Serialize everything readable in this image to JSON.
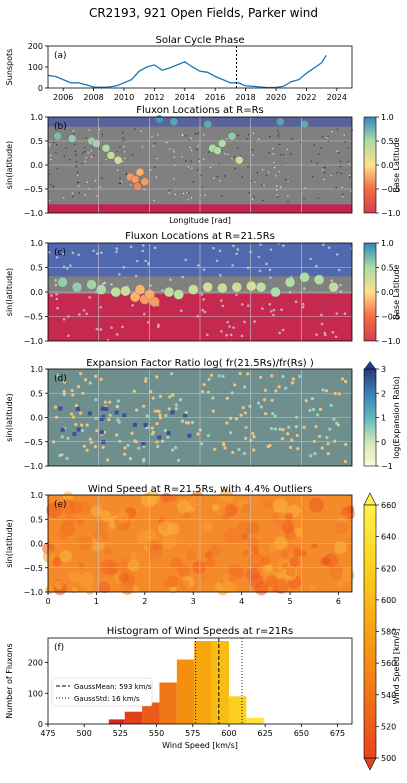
{
  "title": "CR2193, 921 Open Fields, Parker wind",
  "colors": {
    "series": "#1f77b4",
    "grid": "#b0b0b0",
    "panel_bg": "#7f7f7f"
  },
  "chart_data": [
    {
      "id": "a",
      "type": "line",
      "label": "(a)",
      "title": "Solar Cycle Phase",
      "ylabel": "Sunspots",
      "xlim": [
        2005,
        2025
      ],
      "ylim": [
        0,
        200
      ],
      "xticks": [
        "2006",
        "2008",
        "2010",
        "2012",
        "2014",
        "2016",
        "2018",
        "2020",
        "2022",
        "2024"
      ],
      "yticks": [
        "0",
        "100",
        "200"
      ],
      "vline_x": 2017.4,
      "x": [
        2005.0,
        2005.5,
        2006.0,
        2006.5,
        2007.0,
        2007.5,
        2008.0,
        2008.5,
        2009.0,
        2009.5,
        2010.0,
        2010.5,
        2011.0,
        2011.5,
        2012.0,
        2012.5,
        2013.0,
        2013.5,
        2014.0,
        2014.5,
        2015.0,
        2015.5,
        2016.0,
        2016.5,
        2017.0,
        2017.5,
        2018.0,
        2018.5,
        2019.0,
        2019.5,
        2020.0,
        2020.5,
        2021.0,
        2021.5,
        2022.0,
        2022.5,
        2023.0,
        2023.3
      ],
      "y": [
        60,
        55,
        40,
        25,
        25,
        15,
        5,
        3,
        5,
        10,
        25,
        40,
        80,
        100,
        110,
        85,
        95,
        110,
        125,
        100,
        80,
        75,
        55,
        40,
        25,
        25,
        10,
        8,
        5,
        2,
        3,
        8,
        30,
        40,
        70,
        95,
        120,
        155
      ]
    },
    {
      "id": "b",
      "type": "scatter",
      "label": "(b)",
      "title": "Fluxon Locations at R=Rs",
      "ylabel": "sin(latitude)",
      "xlabel": "Longitude [rad]",
      "ylim": [
        -1,
        1
      ],
      "yticks": [
        "1.0",
        "0.5",
        "0.0",
        "−0.5",
        "−1.0"
      ],
      "colorbar": {
        "label": "Base Latitude",
        "ticks": [
          "1.0",
          "0.5",
          "0.0",
          "−0.5",
          "−1.0"
        ]
      },
      "points": [
        [
          0.2,
          0.6,
          0.7
        ],
        [
          0.5,
          0.55,
          0.6
        ],
        [
          0.9,
          0.5,
          0.6
        ],
        [
          1.0,
          0.45,
          0.55
        ],
        [
          1.2,
          0.35,
          0.5
        ],
        [
          1.3,
          0.2,
          0.4
        ],
        [
          1.45,
          0.1,
          0.3
        ],
        [
          1.7,
          -0.25,
          -0.3
        ],
        [
          1.8,
          -0.3,
          -0.3
        ],
        [
          1.9,
          -0.15,
          -0.2
        ],
        [
          2.0,
          -0.35,
          -0.3
        ],
        [
          1.85,
          -0.45,
          -0.4
        ],
        [
          2.3,
          0.95,
          0.9
        ],
        [
          2.6,
          0.9,
          0.85
        ],
        [
          3.3,
          0.85,
          0.8
        ],
        [
          3.4,
          0.35,
          0.5
        ],
        [
          3.5,
          0.3,
          0.45
        ],
        [
          3.6,
          0.45,
          0.5
        ],
        [
          3.8,
          0.6,
          0.6
        ],
        [
          3.95,
          0.1,
          0.3
        ],
        [
          4.8,
          0.9,
          0.85
        ],
        [
          5.3,
          0.85,
          0.8
        ]
      ]
    },
    {
      "id": "c",
      "type": "scatter",
      "label": "(c)",
      "title": "Fluxon Locations at R=21.5Rs",
      "ylabel": "sin(latitude)",
      "ylim": [
        -1,
        1
      ],
      "yticks": [
        "1.0",
        "0.5",
        "0.0",
        "−0.5",
        "−1.0"
      ],
      "colorbar": {
        "label": "Base Latitude",
        "ticks": [
          "1.0",
          "0.5",
          "0.0",
          "−0.5",
          "−1.0"
        ]
      },
      "points": [
        [
          0.3,
          0.2,
          0.6
        ],
        [
          0.6,
          0.1,
          0.6
        ],
        [
          0.9,
          0.15,
          0.55
        ],
        [
          1.1,
          0.05,
          0.5
        ],
        [
          1.4,
          0.0,
          0.4
        ],
        [
          1.6,
          0.02,
          0.3
        ],
        [
          1.8,
          -0.1,
          -0.2
        ],
        [
          2.0,
          -0.15,
          -0.3
        ],
        [
          2.2,
          -0.2,
          -0.3
        ],
        [
          1.9,
          0.05,
          -0.2
        ],
        [
          2.1,
          -0.05,
          -0.25
        ],
        [
          2.5,
          0.0,
          0.4
        ],
        [
          2.7,
          -0.05,
          0.35
        ],
        [
          3.0,
          0.05,
          0.3
        ],
        [
          3.3,
          0.1,
          0.3
        ],
        [
          3.6,
          0.08,
          0.35
        ],
        [
          3.9,
          0.1,
          0.3
        ],
        [
          4.2,
          0.12,
          0.2
        ],
        [
          4.4,
          0.1,
          0.4
        ],
        [
          4.7,
          0.0,
          0.5
        ],
        [
          5.0,
          0.2,
          0.45
        ],
        [
          5.3,
          0.3,
          0.5
        ],
        [
          5.6,
          0.25,
          0.45
        ],
        [
          5.9,
          0.1,
          0.4
        ]
      ]
    },
    {
      "id": "d",
      "type": "heatmap",
      "label": "(d)",
      "title": "Expansion Factor Ratio log( fr(21.5Rs)/fr(Rs) )",
      "ylabel": "sin(latitude)",
      "ylim": [
        -1,
        1
      ],
      "yticks": [
        "1.0",
        "0.5",
        "0.0",
        "−0.5",
        "−1.0"
      ],
      "colorbar": {
        "label": "log(Expansion Ratio)",
        "ticks": [
          "3",
          "2",
          "1",
          "0",
          "−1"
        ]
      }
    },
    {
      "id": "e",
      "type": "heatmap",
      "label": "(e)",
      "title": "Wind Speed at R=21.5Rs, with 4.4% Outliers",
      "ylabel": "sin(latitude)",
      "xlim": [
        0,
        6.28
      ],
      "ylim": [
        -1,
        1
      ],
      "xticks": [
        "0",
        "1",
        "2",
        "3",
        "4",
        "5",
        "6"
      ],
      "yticks": [
        "1.0",
        "0.5",
        "0.0",
        "−0.5",
        "−1.0"
      ],
      "colorbar": {
        "label": "Wind Speed [km/s]",
        "ticks": [
          "660",
          "640",
          "620",
          "600",
          "580",
          "560",
          "540",
          "520",
          "500"
        ]
      }
    },
    {
      "id": "f",
      "type": "bar",
      "label": "(f)",
      "title": "Histogram of Wind Speeds at r=21Rs",
      "xlabel": "Wind Speed [km/s]",
      "ylabel": "Number of Fluxons",
      "xlim": [
        475,
        685
      ],
      "ylim": [
        0,
        280
      ],
      "xticks": [
        "475",
        "500",
        "525",
        "550",
        "575",
        "600",
        "625",
        "650",
        "675"
      ],
      "yticks": [
        "0",
        "100",
        "200"
      ],
      "bins": [
        [
          517,
          528,
          15
        ],
        [
          528,
          540,
          40
        ],
        [
          540,
          552,
          70
        ],
        [
          552,
          564,
          135
        ],
        [
          564,
          576,
          210
        ],
        [
          576,
          588,
          270
        ],
        [
          588,
          600,
          270
        ],
        [
          600,
          612,
          90
        ],
        [
          612,
          624,
          20
        ]
      ],
      "bin_colors": [
        "#d7261d",
        "#e3401a",
        "#ec5a17",
        "#f17615",
        "#f5900f",
        "#f7a70e",
        "#f9bc12",
        "#fbd01e",
        "#fde23a"
      ],
      "gauss_mean": 593,
      "gauss_std": 16,
      "legend": [
        "GaussMean: 593 km/s",
        "GaussStd: 16 km/s"
      ]
    }
  ]
}
